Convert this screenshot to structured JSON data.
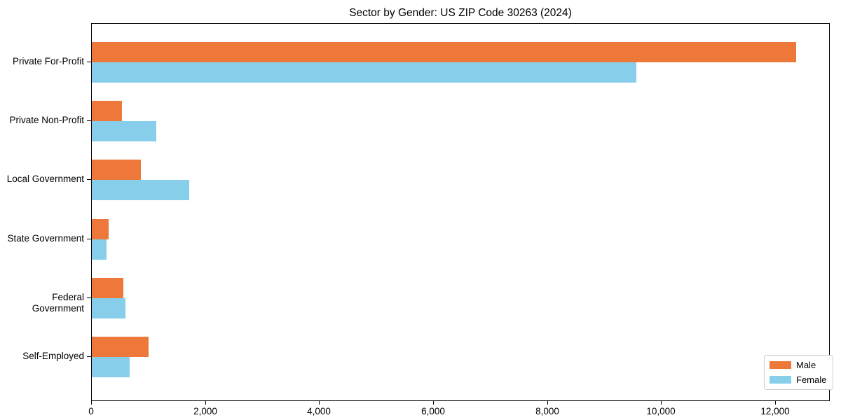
{
  "title": "Sector by Gender: US ZIP Code 30263 (2024)",
  "chart_data": {
    "type": "bar",
    "orientation": "horizontal",
    "title": "Sector by Gender: US ZIP Code 30263 (2024)",
    "categories": [
      "Private For-Profit",
      "Private Non-Profit",
      "Local Government",
      "State Government",
      "Federal Government",
      "Self-Employed"
    ],
    "series": [
      {
        "name": "Male",
        "color": "#ED7839",
        "values": [
          12360,
          530,
          860,
          290,
          550,
          1000
        ]
      },
      {
        "name": "Female",
        "color": "#87CEEB",
        "values": [
          9550,
          1130,
          1710,
          260,
          590,
          660
        ]
      }
    ],
    "xlabel": "",
    "ylabel": "",
    "xlim": [
      0,
      12960
    ],
    "x_ticks": [
      0,
      2000,
      4000,
      6000,
      8000,
      10000,
      12000
    ],
    "x_tick_labels": [
      "0",
      "2,000",
      "4,000",
      "6,000",
      "8,000",
      "10,000",
      "12,000"
    ],
    "grid": false,
    "legend_position": "lower right",
    "plot_border_color": "#000000",
    "background_color": "#ffffff"
  },
  "legend": {
    "items": [
      {
        "label": "Male",
        "color": "#ED7839"
      },
      {
        "label": "Female",
        "color": "#87CEEB"
      }
    ]
  }
}
